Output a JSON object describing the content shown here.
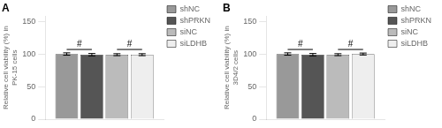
{
  "chart_data": [
    {
      "type": "bar",
      "title": "A",
      "ylabel": "Relative cell viability (%) in\nPK-15 cells",
      "categories": [
        null
      ],
      "series": [
        {
          "name": "shNC",
          "color": "#999999",
          "values": [
            100
          ],
          "errors": [
            1.8
          ]
        },
        {
          "name": "shPRKN",
          "color": "#555555",
          "values": [
            99
          ],
          "errors": [
            1.8
          ]
        },
        {
          "name": "siNC",
          "color": "#bbbbbb",
          "values": [
            99
          ],
          "errors": [
            1.5
          ]
        },
        {
          "name": "siLDHB",
          "color": "#eeeeee",
          "values": [
            99
          ],
          "errors": [
            1.5
          ]
        }
      ],
      "ylim": [
        0,
        158
      ],
      "yticks": [
        0,
        50,
        100,
        150
      ],
      "grid": false,
      "legend": "upper right",
      "tick_labels": "y",
      "annotations": [
        {
          "text": "#",
          "between": [
            "shNC",
            "shPRKN"
          ],
          "line_y": 107,
          "y": 108
        },
        {
          "text": "#",
          "between": [
            "siNC",
            "siLDHB"
          ],
          "line_y": 107,
          "y": 108
        }
      ]
    },
    {
      "type": "bar",
      "title": "B",
      "ylabel": "Relative cell viability (%) in\n3D4/2 cells",
      "categories": [
        null
      ],
      "series": [
        {
          "name": "shNC",
          "color": "#999999",
          "values": [
            100
          ],
          "errors": [
            1.8
          ]
        },
        {
          "name": "shPRKN",
          "color": "#555555",
          "values": [
            99
          ],
          "errors": [
            1.8
          ]
        },
        {
          "name": "siNC",
          "color": "#bbbbbb",
          "values": [
            99
          ],
          "errors": [
            1.5
          ]
        },
        {
          "name": "siLDHB",
          "color": "#eeeeee",
          "values": [
            100
          ],
          "errors": [
            1.5
          ]
        }
      ],
      "ylim": [
        0,
        158
      ],
      "yticks": [
        0,
        50,
        100,
        150
      ],
      "grid": false,
      "legend": "upper right",
      "tick_labels": "y",
      "annotations": [
        {
          "text": "#",
          "between": [
            "shNC",
            "shPRKN"
          ],
          "line_y": 107,
          "y": 108
        },
        {
          "text": "#",
          "between": [
            "siNC",
            "siLDHB"
          ],
          "line_y": 107,
          "y": 108
        }
      ]
    }
  ]
}
